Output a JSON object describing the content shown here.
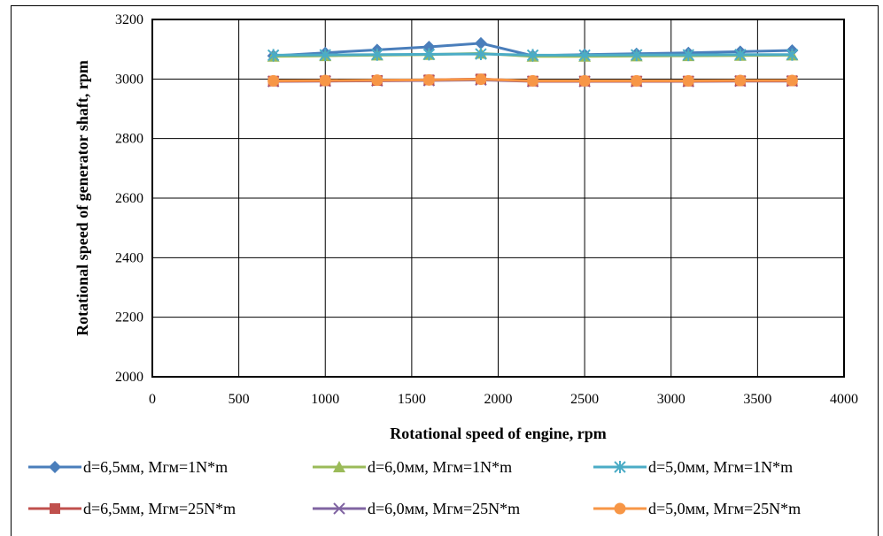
{
  "chart_data": {
    "type": "line",
    "title": "",
    "xlabel": "Rotational speed of engine, rpm",
    "ylabel": "Rotational speed of  generator shaft, rpm",
    "xlim": [
      0,
      4000
    ],
    "ylim": [
      2000,
      3200
    ],
    "x_ticks": [
      "0",
      "500",
      "1000",
      "1500",
      "2000",
      "2500",
      "3000",
      "3500",
      "4000"
    ],
    "y_ticks": [
      "2000",
      "2200",
      "2400",
      "2600",
      "2800",
      "3000",
      "3200"
    ],
    "grid": true,
    "legend_position": "bottom",
    "x": [
      700,
      1000,
      1300,
      1600,
      1900,
      2200,
      2500,
      2800,
      3100,
      3400,
      3700
    ],
    "series": [
      {
        "name": "d=6,5мм, Мгм=1N*m",
        "color": "#4a7ebb",
        "marker": "diamond",
        "values": [
          3078,
          3088,
          3098,
          3108,
          3120,
          3078,
          3082,
          3085,
          3088,
          3092,
          3096
        ]
      },
      {
        "name": "d=6,0мм, Мгм=1N*m",
        "color": "#9bbb59",
        "marker": "triangle",
        "values": [
          3076,
          3078,
          3080,
          3082,
          3086,
          3076,
          3076,
          3077,
          3078,
          3079,
          3080
        ]
      },
      {
        "name": "d=5,0мм, Мгм=1N*m",
        "color": "#4bacc6",
        "marker": "star",
        "values": [
          3080,
          3081,
          3082,
          3083,
          3084,
          3080,
          3080,
          3081,
          3081,
          3082,
          3082
        ]
      },
      {
        "name": "d=6,5мм, Мгм=25N*m",
        "color": "#c0504d",
        "marker": "square",
        "values": [
          2993,
          2994,
          2995,
          2997,
          3000,
          2993,
          2993,
          2993,
          2993,
          2994,
          2994
        ]
      },
      {
        "name": "d=6,0мм, Мгм=25N*m",
        "color": "#8064a2",
        "marker": "x",
        "values": [
          2992,
          2993,
          2994,
          2995,
          2997,
          2992,
          2992,
          2992,
          2992,
          2993,
          2993
        ]
      },
      {
        "name": "d=5,0мм, Мгм=25N*m",
        "color": "#f79646",
        "marker": "circle",
        "values": [
          2994,
          2995,
          2996,
          2997,
          2999,
          2994,
          2994,
          2994,
          2994,
          2995,
          2995
        ]
      }
    ]
  }
}
